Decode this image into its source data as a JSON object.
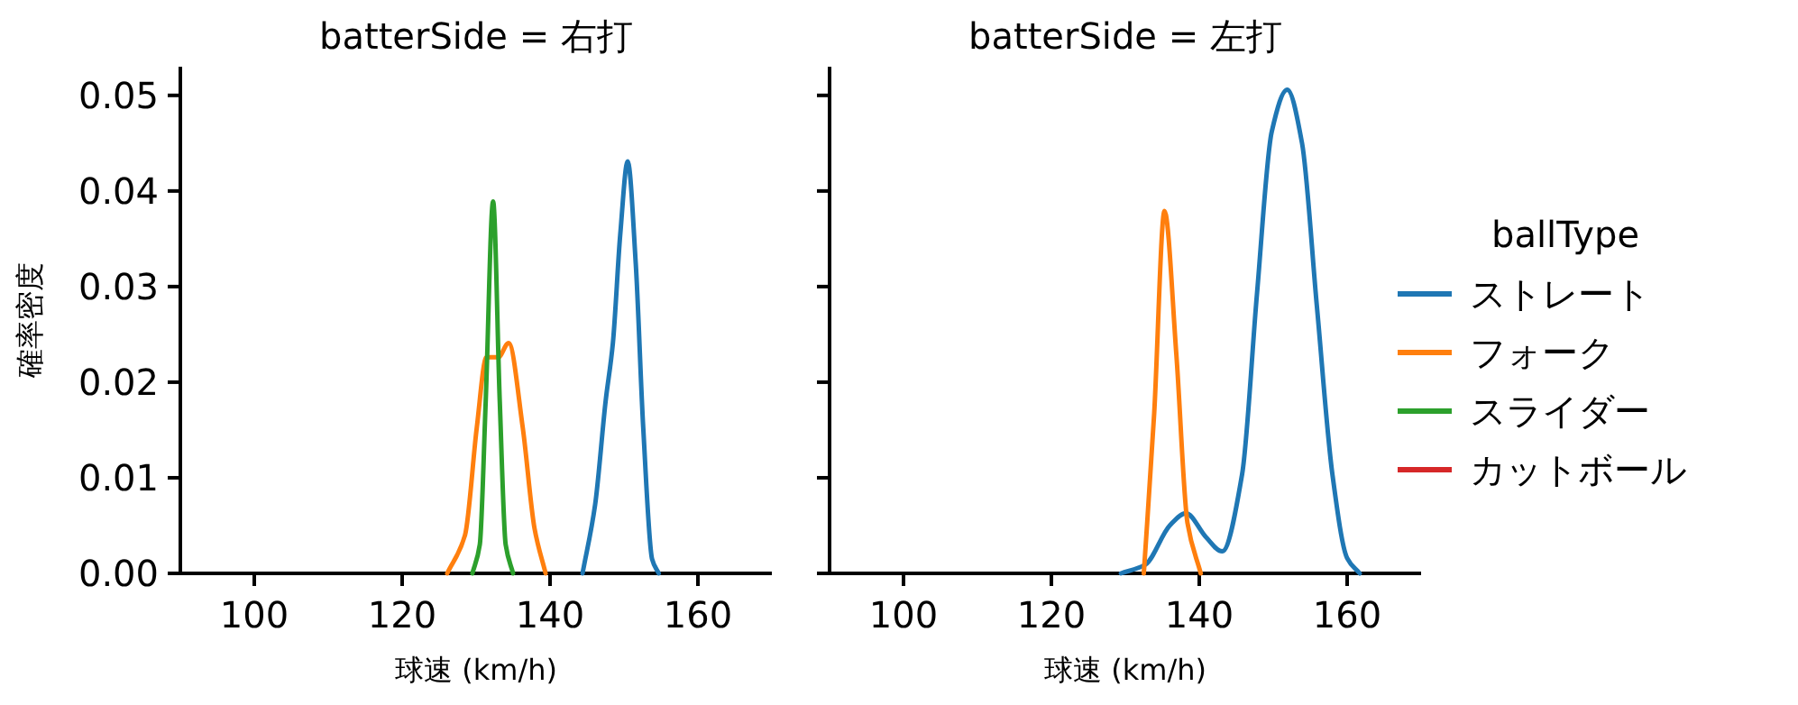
{
  "chart_data": [
    {
      "type": "line",
      "title": "batterSide = 右打",
      "xlabel": "球速 (km/h)",
      "ylabel": "確率密度",
      "xlim": [
        90,
        170
      ],
      "xticks": [
        100,
        120,
        140,
        160
      ],
      "ylim": [
        0,
        0.053
      ],
      "yticks": [
        {
          "value": 0,
          "label": "0.00"
        },
        {
          "value": 0.01,
          "label": "0.01"
        },
        {
          "value": 0.02,
          "label": "0.02"
        },
        {
          "value": 0.03,
          "label": "0.03"
        },
        {
          "value": 0.04,
          "label": "0.04"
        },
        {
          "value": 0.05,
          "label": "0.05"
        }
      ],
      "legend": false,
      "series": [
        {
          "color": "#1f77b4",
          "x": [
            144.4,
            146.1,
            147.5,
            148.5,
            149.5,
            150.5,
            151.6,
            152.6,
            153.8,
            154.7
          ],
          "values": [
            0,
            0.0072,
            0.0179,
            0.0241,
            0.0355,
            0.0431,
            0.0323,
            0.0153,
            0.0015,
            0
          ]
        },
        {
          "color": "#ff7f0e",
          "x": [
            126.1,
            128.5,
            130.1,
            131.4,
            133.0,
            134.4,
            136.3,
            137.9,
            139.4
          ],
          "values": [
            0,
            0.004,
            0.0153,
            0.0226,
            0.0226,
            0.0241,
            0.0153,
            0.0047,
            0
          ]
        },
        {
          "color": "#2ca02c",
          "x": [
            129.5,
            130.5,
            131.3,
            132.3,
            133.2,
            134.0,
            135.0
          ],
          "values": [
            0,
            0.003,
            0.018,
            0.0389,
            0.018,
            0.003,
            0
          ]
        }
      ]
    },
    {
      "type": "line",
      "title": "batterSide = 左打",
      "xlabel": "球速 (km/h)",
      "xlim": [
        90,
        170
      ],
      "xticks": [
        100,
        120,
        140,
        160
      ],
      "ylim": [
        0,
        0.053
      ],
      "yticks": [
        {
          "value": 0,
          "label": null
        },
        {
          "value": 0.01,
          "label": null
        },
        {
          "value": 0.02,
          "label": null
        },
        {
          "value": 0.03,
          "label": null
        },
        {
          "value": 0.04,
          "label": null
        },
        {
          "value": 0.05,
          "label": null
        }
      ],
      "tick_labels": "x",
      "legend": "right",
      "legend_title": "ballType",
      "series": [
        {
          "name": "ストレート",
          "color": "#1f77b4",
          "x": [
            129.4,
            132.7,
            136.0,
            138.2,
            140.9,
            143.1,
            145.8,
            147.8,
            149.8,
            151.9,
            153.9,
            155.9,
            158.0,
            160.0,
            161.7
          ],
          "values": [
            0,
            0.0009,
            0.005,
            0.0063,
            0.0038,
            0.0023,
            0.0104,
            0.0292,
            0.0462,
            0.0506,
            0.045,
            0.028,
            0.0104,
            0.0016,
            0
          ]
        },
        {
          "name": "フォーク",
          "color": "#ff7f0e",
          "x": [
            132.5,
            133.9,
            135.3,
            136.9,
            138.4,
            140.2
          ],
          "values": [
            0,
            0.0167,
            0.0379,
            0.0229,
            0.0053,
            0
          ]
        },
        {
          "name": "スライダー",
          "color": "#2ca02c"
        },
        {
          "name": "カットボール",
          "color": "#d62728"
        }
      ]
    }
  ]
}
